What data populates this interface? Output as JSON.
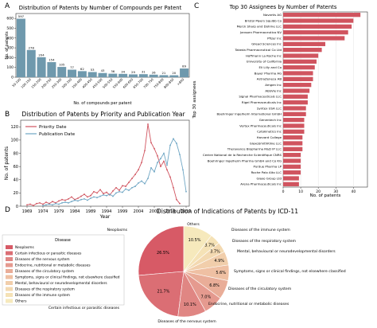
{
  "panels": {
    "a": "A",
    "b": "B",
    "c": "C",
    "d": "D"
  },
  "chart_data": [
    {
      "type": "bar",
      "title": "Distribution of Patents by Number of Compounds per Patent",
      "xlabel": "No. of compounds per patent",
      "ylabel": "No. of patents",
      "categories": [
        "50-100",
        "100-150",
        "150-200",
        "200-250",
        "250-300",
        "300-350",
        "350-400",
        "400-450",
        "450-500",
        "500-550",
        "550-600",
        "600-650",
        "650-700",
        "700-750",
        "750-800",
        "800-850",
        ">850"
      ],
      "values": [
        597,
        278,
        204,
        154,
        105,
        77,
        62,
        53,
        43,
        36,
        34,
        29,
        31,
        26,
        21,
        20,
        89
      ],
      "data_labels": [
        "597",
        "278",
        "204",
        "154",
        "105",
        "77",
        "62",
        "53",
        "43",
        "36",
        "34",
        "29",
        "31",
        "26",
        "21",
        "20",
        "89"
      ],
      "ylim": [
        0,
        650
      ],
      "yticks": [
        0,
        100,
        200,
        300,
        400,
        500,
        600
      ],
      "color": "#6f99ad"
    },
    {
      "type": "line",
      "title": "Distribution of Patents by Priority and Publication Year",
      "xlabel": "Year",
      "ylabel": "No. of patents",
      "xlim": [
        1967,
        2020
      ],
      "ylim": [
        0,
        130
      ],
      "xticks": [
        1969,
        1974,
        1979,
        1984,
        1989,
        1994,
        1999,
        2004,
        2009,
        2014,
        2019
      ],
      "yticks": [
        0,
        20,
        40,
        60,
        80,
        100,
        120
      ],
      "legend_position": "top-left",
      "series": [
        {
          "name": "Priority Date",
          "color": "#d0545f",
          "x": [
            1969,
            1970,
            1971,
            1972,
            1973,
            1974,
            1975,
            1976,
            1977,
            1978,
            1979,
            1980,
            1981,
            1982,
            1983,
            1984,
            1985,
            1986,
            1987,
            1988,
            1989,
            1990,
            1991,
            1992,
            1993,
            1994,
            1995,
            1996,
            1997,
            1998,
            1999,
            2000,
            2001,
            2002,
            2003,
            2004,
            2005,
            2006,
            2007,
            2008,
            2009,
            2010,
            2011,
            2012,
            2013,
            2014,
            2015,
            2016,
            2017
          ],
          "y": [
            2,
            3,
            1,
            4,
            5,
            3,
            6,
            4,
            7,
            5,
            8,
            10,
            9,
            11,
            14,
            10,
            12,
            15,
            18,
            14,
            16,
            22,
            20,
            25,
            19,
            21,
            17,
            23,
            28,
            24,
            31,
            30,
            36,
            42,
            48,
            55,
            66,
            84,
            124,
            96,
            87,
            76,
            60,
            68,
            55,
            44,
            28,
            10,
            4
          ]
        },
        {
          "name": "Publication Date",
          "color": "#6fa6c4",
          "x": [
            1974,
            1975,
            1976,
            1977,
            1978,
            1979,
            1980,
            1981,
            1982,
            1983,
            1984,
            1985,
            1986,
            1987,
            1988,
            1989,
            1990,
            1991,
            1992,
            1993,
            1994,
            1995,
            1996,
            1997,
            1998,
            1999,
            2000,
            2001,
            2002,
            2003,
            2004,
            2005,
            2006,
            2007,
            2008,
            2009,
            2010,
            2011,
            2012,
            2013,
            2014,
            2015,
            2016,
            2017,
            2018,
            2019
          ],
          "y": [
            1,
            2,
            3,
            2,
            4,
            3,
            5,
            6,
            5,
            7,
            9,
            8,
            10,
            11,
            9,
            12,
            14,
            13,
            15,
            17,
            16,
            18,
            15,
            20,
            22,
            21,
            26,
            24,
            28,
            30,
            35,
            38,
            34,
            42,
            58,
            52,
            66,
            72,
            80,
            62,
            92,
            102,
            95,
            78,
            55,
            22
          ]
        }
      ]
    },
    {
      "type": "bar",
      "orientation": "horizontal",
      "title": "Top 30 Assignees by Number of Patents",
      "xlabel": "No. of patents",
      "ylabel": "Top 30 assignees",
      "xlim": [
        0,
        48
      ],
      "xticks": [
        0,
        10,
        20,
        30,
        40
      ],
      "color": "#d0545f",
      "categories": [
        "Novartis AG",
        "Bristol Myers Squibb Co",
        "Merck Sharp and Dohme LLC",
        "Janssen Pharmaceutica NV",
        "Pfizer Inc",
        "Gilead Sciences Inc",
        "Takeda Pharmaceutical Co Ltd",
        "Hoffmann La Roche Inc",
        "University of California",
        "Eli Lilly and Co",
        "Bayer Pharma AG",
        "AstraZeneca AB",
        "Amgen Inc",
        "AbbVie Inc",
        "Signal Pharmaceuticals LLC",
        "Rigel Pharmaceuticals Inc",
        "Syntex USA LLC",
        "Boehringer Ingelheim International GmbH",
        "Genentech Inc",
        "Vertex Pharmaceuticals Inc",
        "Cytokinetics Inc",
        "Harvard College",
        "GlaxoSmithKline LLC",
        "Theravance Biopharma R&D IP LLC",
        "Centre National de la Recherche Scientifique CNRS",
        "Boehringer Ingelheim Pharma GmbH and Co KG",
        "Purdue Pharma LP",
        "Roche Palo Alto LLC",
        "Glaxo Group Ltd",
        "Arena Pharmaceuticals Inc"
      ],
      "values": [
        44,
        40,
        39,
        37,
        35,
        24,
        22,
        20,
        19,
        18,
        17,
        17,
        16,
        15,
        14,
        14,
        13,
        13,
        12,
        12,
        12,
        11,
        11,
        11,
        10,
        10,
        10,
        10,
        9,
        9
      ]
    },
    {
      "type": "pie",
      "title": "Distribution of Indications of Patents by ICD-11",
      "legend_title": "Disease",
      "legend_position": "left",
      "categories": [
        "Neoplasms",
        "Certain infectious or parasitic diseases",
        "Diseases of the nervous system",
        "Endocrine, nutritional or metabolic diseases",
        "Diseases of the circulatory system",
        "Symptoms, signs or clinical findings, not elsewhere classified",
        "Mental, behavioural or neurodevelopmental disorders",
        "Diseases of the respiratory system",
        "Diseases of the immune system",
        "Others"
      ],
      "values": [
        26.5,
        21.7,
        10.1,
        7.0,
        6.8,
        5.6,
        4.9,
        3.7,
        3.7,
        10.5
      ],
      "data_labels": [
        "26.5%",
        "21.7%",
        "10.1%",
        "7.0%",
        "6.8%",
        "5.6%",
        "4.9%",
        "3.7%",
        "3.7%",
        "10.5%"
      ],
      "colors": [
        "#d75a66",
        "#db6e74",
        "#e08683",
        "#e59a8f",
        "#e9ad98",
        "#efc0a3",
        "#f1ceab",
        "#f3d9b1",
        "#f5e2b6",
        "#f6e9bc"
      ]
    }
  ]
}
